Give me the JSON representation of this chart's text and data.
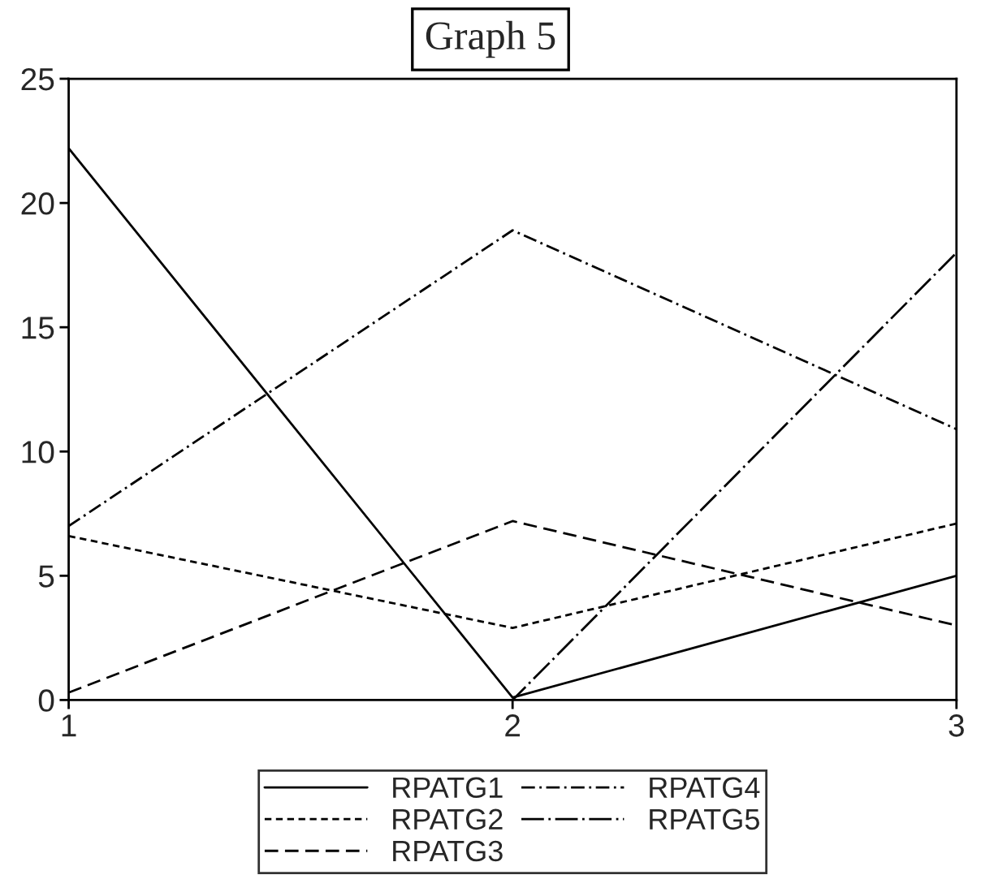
{
  "chart_data": {
    "type": "line",
    "title": "Graph 5",
    "x": [
      1,
      2,
      3
    ],
    "series": [
      {
        "name": "RPATG1",
        "color": "#000000",
        "line_style": "solid",
        "values": [
          22.2,
          0.1,
          5.0
        ]
      },
      {
        "name": "RPATG2",
        "color": "#000000",
        "line_style": "dotted",
        "values": [
          6.6,
          2.9,
          7.1
        ]
      },
      {
        "name": "RPATG3",
        "color": "#000000",
        "line_style": "dashed",
        "values": [
          0.3,
          7.2,
          3.0
        ]
      },
      {
        "name": "RPATG4",
        "color": "#000000",
        "line_style": "dashdot",
        "values": [
          7.0,
          18.9,
          10.9
        ]
      },
      {
        "name": "RPATG5",
        "color": "#000000",
        "line_style": "longdashdot",
        "values": [
          0,
          0,
          18.0
        ]
      }
    ],
    "xlim": [
      1,
      3
    ],
    "xticks": [
      1,
      2,
      3
    ],
    "ylim": [
      0,
      25
    ],
    "yticks": [
      0,
      5,
      10,
      15,
      20,
      25
    ],
    "grid": false,
    "legend": "bottom",
    "marker": "none"
  }
}
